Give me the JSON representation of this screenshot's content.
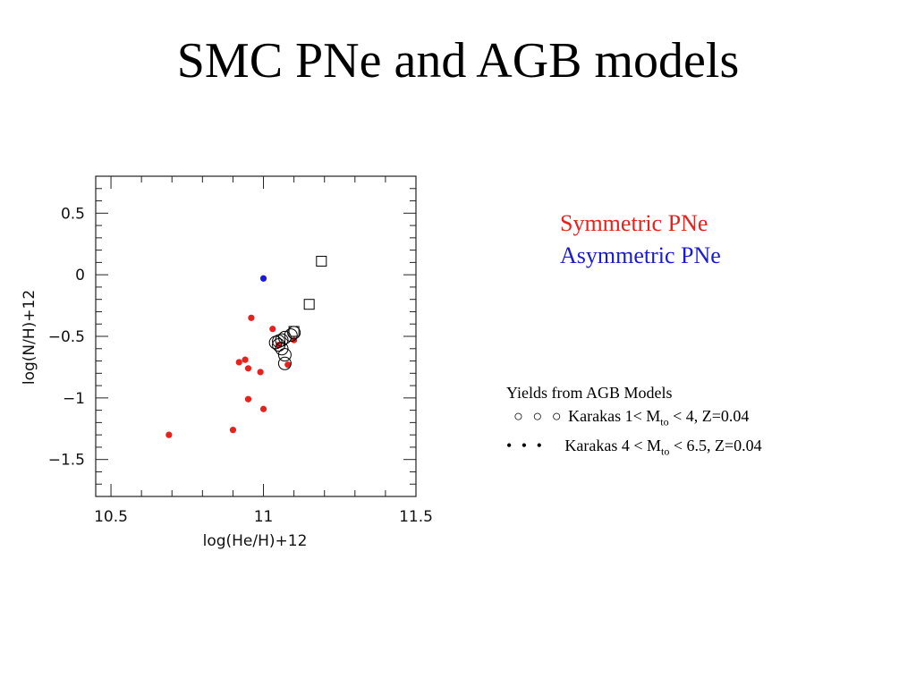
{
  "slide": {
    "title": "SMC PNe and AGB models"
  },
  "legend": {
    "symmetric": {
      "label": "Symmetric PNe",
      "color": "#e8211c"
    },
    "asymmetric": {
      "label": "Asymmetric PNe",
      "color": "#1a1ad6"
    }
  },
  "yields": {
    "heading": "Yields from AGB Models",
    "row1": {
      "symbol": "○ ○ ○",
      "prefix": "Karakas 1< M",
      "sub": "to",
      "suffix": " < 4, Z=0.04"
    },
    "row2": {
      "symbol": "• • •",
      "prefix": "Karakas 4 < M",
      "sub": "to",
      "suffix": " < 6.5, Z=0.04"
    }
  },
  "chart_data": {
    "type": "scatter",
    "title": "",
    "xlabel": "log(He/H)+12",
    "ylabel": "log(N/H)+12",
    "xlim": [
      10.45,
      11.5
    ],
    "ylim": [
      -1.8,
      0.8
    ],
    "x_ticks": [
      10.5,
      11,
      11.5
    ],
    "x_tick_labels": [
      "10.5",
      "11",
      "11.5"
    ],
    "y_ticks": [
      0.5,
      0,
      -0.5,
      -1,
      -1.5
    ],
    "y_tick_labels": [
      "0.5",
      "0",
      "−0.5",
      "−1",
      "−1.5"
    ],
    "series": [
      {
        "name": "Symmetric PNe",
        "marker": "filled-circle",
        "color": "#e8211c",
        "points": [
          [
            10.69,
            -1.3
          ],
          [
            10.9,
            -1.26
          ],
          [
            10.92,
            -0.71
          ],
          [
            10.94,
            -0.69
          ],
          [
            10.95,
            -0.76
          ],
          [
            10.95,
            -1.01
          ],
          [
            10.96,
            -0.35
          ],
          [
            10.99,
            -0.79
          ],
          [
            11.0,
            -1.09
          ],
          [
            11.03,
            -0.44
          ],
          [
            11.05,
            -0.57
          ],
          [
            11.08,
            -0.73
          ],
          [
            11.1,
            -0.53
          ]
        ]
      },
      {
        "name": "Asymmetric PNe",
        "marker": "filled-circle",
        "color": "#1a1ad6",
        "points": [
          [
            11.0,
            -0.03
          ]
        ]
      },
      {
        "name": "Karakas 1< Mto < 4, Z=0.04",
        "marker": "open-circle",
        "color": "#000000",
        "points": [
          [
            11.04,
            -0.55
          ],
          [
            11.05,
            -0.57
          ],
          [
            11.06,
            -0.53
          ],
          [
            11.07,
            -0.51
          ],
          [
            11.06,
            -0.6
          ],
          [
            11.07,
            -0.65
          ],
          [
            11.07,
            -0.72
          ],
          [
            11.09,
            -0.49
          ],
          [
            11.1,
            -0.47
          ],
          [
            11.05,
            -0.54
          ]
        ]
      },
      {
        "name": "Karakas 4 < Mto < 6.5, Z=0.04",
        "marker": "open-square",
        "color": "#000000",
        "points": [
          [
            11.19,
            0.11
          ],
          [
            11.15,
            -0.24
          ],
          [
            11.1,
            -0.46
          ]
        ]
      }
    ]
  }
}
